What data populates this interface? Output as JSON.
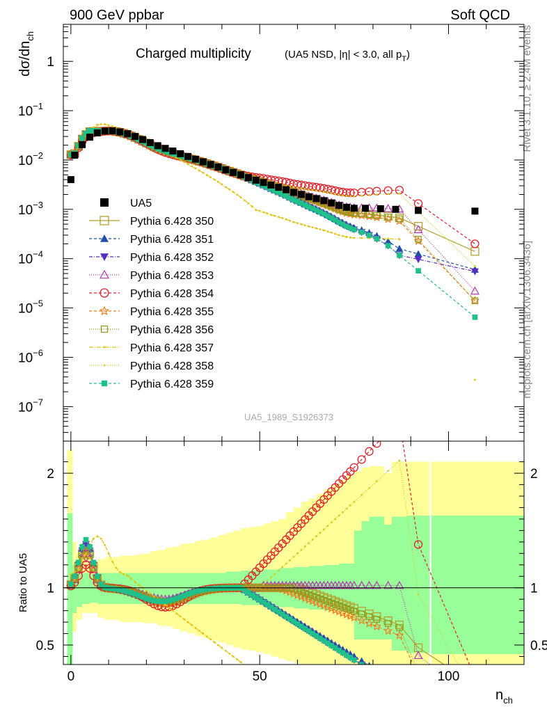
{
  "header": {
    "left": "900 GeV ppbar",
    "right": "Soft QCD",
    "side_top": "Rivet 3.1.10, ≥ 2.4M events",
    "side_bottom": "mcplots.cern.ch [arXiv:1306.3436]",
    "analysis_id": "UA5_1989_S1926373"
  },
  "chart_data": {
    "type": "line",
    "title": "Charged multiplicity",
    "subtitle": "(UA5 NSD, |η| < 3.0, all p",
    "subtitle_sub": "T",
    "subtitle_end": ")",
    "xlabel": "n",
    "xlabel_sub": "ch",
    "ylabel": "dσ/dn",
    "ylabel_sub": "ch",
    "ratio_ylabel": "Ratio to UA5",
    "xlim": [
      -2,
      120
    ],
    "ylim_log": [
      -7.7,
      0.75
    ],
    "ratio_ylim": [
      0.33,
      2.28
    ],
    "log_y": true,
    "x_ticks": [
      0,
      50,
      100
    ],
    "x_tick_labels": [
      "0",
      "50",
      "100"
    ],
    "y_ticks": [
      {
        "base": "10",
        "exp": "−7",
        "value": -7
      },
      {
        "base": "10",
        "exp": "−6",
        "value": -6
      },
      {
        "base": "10",
        "exp": "−5",
        "value": -5
      },
      {
        "base": "10",
        "exp": "−4",
        "value": -4
      },
      {
        "base": "10",
        "exp": "−3",
        "value": -3
      },
      {
        "base": "10",
        "exp": "−2",
        "value": -2
      },
      {
        "base": "10",
        "exp": "−1",
        "value": -1
      },
      {
        "base": "1",
        "exp": "",
        "value": 0
      }
    ],
    "ratio_ticks": [
      {
        "value": 0.5,
        "label": "0.5"
      },
      {
        "value": 1,
        "label": "1"
      },
      {
        "value": 2,
        "label": "2"
      }
    ],
    "legend_position": "left-middle",
    "data_series": {
      "name": "UA5",
      "color": "#000000",
      "x": [
        0,
        1,
        3,
        5,
        7,
        9,
        11,
        13,
        15,
        17,
        19,
        21,
        23,
        25,
        27,
        29,
        31,
        33,
        35,
        37,
        39,
        41,
        43,
        45,
        47,
        49,
        51,
        53,
        55,
        57,
        59,
        61,
        63,
        65,
        67,
        69,
        71,
        73,
        75,
        78,
        82,
        86,
        92,
        107
      ],
      "y": [
        0.004,
        0.0125,
        0.0205,
        0.029,
        0.0355,
        0.0385,
        0.039,
        0.037,
        0.034,
        0.03,
        0.026,
        0.0225,
        0.0195,
        0.0172,
        0.0152,
        0.0134,
        0.0118,
        0.0104,
        0.0092,
        0.0081,
        0.0072,
        0.0063,
        0.0056,
        0.005,
        0.0044,
        0.0039,
        0.0035,
        0.0031,
        0.0028,
        0.0025,
        0.0022,
        0.002,
        0.0018,
        0.00165,
        0.0015,
        0.00135,
        0.0012,
        0.0011,
        0.00105,
        0.00105,
        0.00103,
        0.001,
        0.00095,
        0.00092
      ]
    },
    "band_outer": [
      {
        "x": [
          -1,
          0.5
        ],
        "lo": 0.33,
        "hi": 2.2
      },
      {
        "x": [
          0.5,
          1.5
        ],
        "lo": 0.62,
        "hi": 1.4
      },
      {
        "x": [
          1.5,
          3
        ],
        "lo": 0.72,
        "hi": 1.3
      },
      {
        "x": [
          3,
          5
        ],
        "lo": 0.78,
        "hi": 1.25
      },
      {
        "x": [
          5,
          7
        ],
        "lo": 0.78,
        "hi": 1.22
      },
      {
        "x": [
          7,
          9
        ],
        "lo": 0.74,
        "hi": 1.25
      },
      {
        "x": [
          9,
          11
        ],
        "lo": 0.72,
        "hi": 1.27
      },
      {
        "x": [
          11,
          13
        ],
        "lo": 0.72,
        "hi": 1.27
      },
      {
        "x": [
          13,
          15
        ],
        "lo": 0.7,
        "hi": 1.28
      },
      {
        "x": [
          15,
          17
        ],
        "lo": 0.7,
        "hi": 1.28
      },
      {
        "x": [
          17,
          19
        ],
        "lo": 0.7,
        "hi": 1.29
      },
      {
        "x": [
          19,
          21
        ],
        "lo": 0.69,
        "hi": 1.3
      },
      {
        "x": [
          21,
          23
        ],
        "lo": 0.69,
        "hi": 1.32
      },
      {
        "x": [
          23,
          25
        ],
        "lo": 0.67,
        "hi": 1.33
      },
      {
        "x": [
          25,
          27
        ],
        "lo": 0.66,
        "hi": 1.35
      },
      {
        "x": [
          27,
          29
        ],
        "lo": 0.64,
        "hi": 1.36
      },
      {
        "x": [
          29,
          31
        ],
        "lo": 0.62,
        "hi": 1.38
      },
      {
        "x": [
          31,
          33
        ],
        "lo": 0.6,
        "hi": 1.39
      },
      {
        "x": [
          33,
          35
        ],
        "lo": 0.58,
        "hi": 1.41
      },
      {
        "x": [
          35,
          37
        ],
        "lo": 0.56,
        "hi": 1.42
      },
      {
        "x": [
          37,
          39
        ],
        "lo": 0.54,
        "hi": 1.44
      },
      {
        "x": [
          39,
          41
        ],
        "lo": 0.52,
        "hi": 1.46
      },
      {
        "x": [
          41,
          43
        ],
        "lo": 0.5,
        "hi": 1.48
      },
      {
        "x": [
          43,
          45
        ],
        "lo": 0.48,
        "hi": 1.5
      },
      {
        "x": [
          45,
          47
        ],
        "lo": 0.46,
        "hi": 1.52
      },
      {
        "x": [
          47,
          49
        ],
        "lo": 0.45,
        "hi": 1.53
      },
      {
        "x": [
          49,
          51
        ],
        "lo": 0.44,
        "hi": 1.54
      },
      {
        "x": [
          51,
          53
        ],
        "lo": 0.42,
        "hi": 1.56
      },
      {
        "x": [
          53,
          55
        ],
        "lo": 0.4,
        "hi": 1.58
      },
      {
        "x": [
          55,
          57
        ],
        "lo": 0.38,
        "hi": 1.6
      },
      {
        "x": [
          57,
          59
        ],
        "lo": 0.36,
        "hi": 1.66
      },
      {
        "x": [
          59,
          61
        ],
        "lo": 0.34,
        "hi": 1.7
      },
      {
        "x": [
          61,
          63
        ],
        "lo": 0.33,
        "hi": 1.75
      },
      {
        "x": [
          63,
          65
        ],
        "lo": 0.33,
        "hi": 1.78
      },
      {
        "x": [
          65,
          67
        ],
        "lo": 0.33,
        "hi": 1.82
      },
      {
        "x": [
          67,
          69
        ],
        "lo": 0.33,
        "hi": 1.86
      },
      {
        "x": [
          69,
          71
        ],
        "lo": 0.33,
        "hi": 1.9
      },
      {
        "x": [
          71,
          73
        ],
        "lo": 0.33,
        "hi": 1.94
      },
      {
        "x": [
          73,
          75
        ],
        "lo": 0.33,
        "hi": 1.98
      },
      {
        "x": [
          75,
          77
        ],
        "lo": 0.33,
        "hi": 2.02
      },
      {
        "x": [
          77,
          79
        ],
        "lo": 0.33,
        "hi": 2.05
      },
      {
        "x": [
          79,
          81
        ],
        "lo": 0.33,
        "hi": 2.06
      },
      {
        "x": [
          81,
          83
        ],
        "lo": 0.33,
        "hi": 2.06
      },
      {
        "x": [
          83,
          85
        ],
        "lo": 0.33,
        "hi": 2.0
      },
      {
        "x": [
          85,
          89
        ],
        "lo": 0.33,
        "hi": 2.1
      },
      {
        "x": [
          89,
          95
        ],
        "lo": 0.33,
        "hi": 2.1
      },
      {
        "x": [
          95.5,
          120
        ],
        "lo": 0.33,
        "hi": 2.1
      }
    ],
    "band_inner": [
      {
        "x": [
          -1,
          0.5
        ],
        "lo": 0.33,
        "hi": 1.65
      },
      {
        "x": [
          0.5,
          1.5
        ],
        "lo": 0.78,
        "hi": 1.2
      },
      {
        "x": [
          1.5,
          3
        ],
        "lo": 0.83,
        "hi": 1.15
      },
      {
        "x": [
          3,
          5
        ],
        "lo": 0.86,
        "hi": 1.13
      },
      {
        "x": [
          5,
          7
        ],
        "lo": 0.87,
        "hi": 1.12
      },
      {
        "x": [
          7,
          9
        ],
        "lo": 0.86,
        "hi": 1.13
      },
      {
        "x": [
          9,
          11
        ],
        "lo": 0.86,
        "hi": 1.13
      },
      {
        "x": [
          11,
          13
        ],
        "lo": 0.86,
        "hi": 1.13
      },
      {
        "x": [
          13,
          15
        ],
        "lo": 0.86,
        "hi": 1.13
      },
      {
        "x": [
          15,
          17
        ],
        "lo": 0.86,
        "hi": 1.13
      },
      {
        "x": [
          17,
          19
        ],
        "lo": 0.86,
        "hi": 1.13
      },
      {
        "x": [
          19,
          21
        ],
        "lo": 0.86,
        "hi": 1.13
      },
      {
        "x": [
          21,
          23
        ],
        "lo": 0.86,
        "hi": 1.13
      },
      {
        "x": [
          23,
          25
        ],
        "lo": 0.86,
        "hi": 1.13
      },
      {
        "x": [
          25,
          27
        ],
        "lo": 0.86,
        "hi": 1.13
      },
      {
        "x": [
          27,
          29
        ],
        "lo": 0.86,
        "hi": 1.13
      },
      {
        "x": [
          29,
          31
        ],
        "lo": 0.86,
        "hi": 1.13
      },
      {
        "x": [
          31,
          33
        ],
        "lo": 0.86,
        "hi": 1.13
      },
      {
        "x": [
          33,
          35
        ],
        "lo": 0.86,
        "hi": 1.13
      },
      {
        "x": [
          35,
          37
        ],
        "lo": 0.86,
        "hi": 1.13
      },
      {
        "x": [
          37,
          39
        ],
        "lo": 0.86,
        "hi": 1.13
      },
      {
        "x": [
          39,
          41
        ],
        "lo": 0.86,
        "hi": 1.13
      },
      {
        "x": [
          41,
          43
        ],
        "lo": 0.86,
        "hi": 1.14
      },
      {
        "x": [
          43,
          45
        ],
        "lo": 0.86,
        "hi": 1.14
      },
      {
        "x": [
          45,
          47
        ],
        "lo": 0.85,
        "hi": 1.15
      },
      {
        "x": [
          47,
          49
        ],
        "lo": 0.85,
        "hi": 1.15
      },
      {
        "x": [
          49,
          51
        ],
        "lo": 0.85,
        "hi": 1.15
      },
      {
        "x": [
          51,
          53
        ],
        "lo": 0.84,
        "hi": 1.16
      },
      {
        "x": [
          53,
          55
        ],
        "lo": 0.84,
        "hi": 1.16
      },
      {
        "x": [
          55,
          57
        ],
        "lo": 0.83,
        "hi": 1.17
      },
      {
        "x": [
          57,
          59
        ],
        "lo": 0.83,
        "hi": 1.17
      },
      {
        "x": [
          59,
          61
        ],
        "lo": 0.82,
        "hi": 1.18
      },
      {
        "x": [
          61,
          63
        ],
        "lo": 0.82,
        "hi": 1.18
      },
      {
        "x": [
          63,
          65
        ],
        "lo": 0.81,
        "hi": 1.19
      },
      {
        "x": [
          65,
          67
        ],
        "lo": 0.81,
        "hi": 1.19
      },
      {
        "x": [
          67,
          69
        ],
        "lo": 0.8,
        "hi": 1.2
      },
      {
        "x": [
          69,
          71
        ],
        "lo": 0.8,
        "hi": 1.2
      },
      {
        "x": [
          71,
          73
        ],
        "lo": 0.79,
        "hi": 1.21
      },
      {
        "x": [
          73,
          75
        ],
        "lo": 0.79,
        "hi": 1.21
      },
      {
        "x": [
          75,
          77
        ],
        "lo": 0.55,
        "hi": 1.5
      },
      {
        "x": [
          77,
          79
        ],
        "lo": 0.55,
        "hi": 1.58
      },
      {
        "x": [
          79,
          81
        ],
        "lo": 0.55,
        "hi": 1.62
      },
      {
        "x": [
          81,
          83
        ],
        "lo": 0.55,
        "hi": 1.62
      },
      {
        "x": [
          83,
          85
        ],
        "lo": 0.55,
        "hi": 1.55
      },
      {
        "x": [
          85,
          89
        ],
        "lo": 0.45,
        "hi": 1.62
      },
      {
        "x": [
          89,
          95
        ],
        "lo": 0.43,
        "hi": 1.63
      },
      {
        "x": [
          95.5,
          120
        ],
        "lo": 0.42,
        "hi": 1.63
      }
    ],
    "series": [
      {
        "name": "Pythia 6.428 350",
        "color": "#b5a02e",
        "marker": "square-open",
        "dash": "",
        "mc_scale": 1.0,
        "tail_exp": 1.0,
        "tail_end": 0.00014
      },
      {
        "name": "Pythia 6.428 351",
        "color": "#1f4fa8",
        "marker": "triangle-up",
        "dash": "4,3",
        "mc_scale": 1.0,
        "tail_exp": 1.0,
        "tail_end": 6e-05
      },
      {
        "name": "Pythia 6.428 352",
        "color": "#5a2bc2",
        "marker": "triangle-down",
        "dash": "5,2,1,2",
        "mc_scale": 1.0,
        "tail_exp": 1.0,
        "tail_end": 5.5e-05
      },
      {
        "name": "Pythia 6.428 353",
        "color": "#b03ab0",
        "marker": "triangle-open",
        "dash": "1,2",
        "mc_scale": 1.0,
        "tail_exp": 1.0,
        "tail_end": 2.2e-05
      },
      {
        "name": "Pythia 6.428 354",
        "color": "#e0202a",
        "marker": "circle-open",
        "dash": "4,3",
        "mc_scale": 1.0,
        "tail_exp": 1.0,
        "tail_end": 0.0002
      },
      {
        "name": "Pythia 6.428 355",
        "color": "#f07a1a",
        "marker": "star-open",
        "dash": "4,3",
        "mc_scale": 1.0,
        "tail_exp": 1.0,
        "tail_end": 1.4e-05
      },
      {
        "name": "Pythia 6.428 356",
        "color": "#8a9a1a",
        "marker": "square-open-small",
        "dash": "1,2",
        "mc_scale": 1.0,
        "tail_exp": 1.0,
        "tail_end": 1.4e-05
      },
      {
        "name": "Pythia 6.428 357",
        "color": "#e3c20a",
        "marker": "dot",
        "dash": "6,2,1,2",
        "mc_scale": 1.0,
        "tail_exp": 1.0,
        "tail_end": 3.5e-07
      },
      {
        "name": "Pythia 6.428 358",
        "color": "#c8d020",
        "marker": "dot",
        "dash": "1,2",
        "mc_scale": 1.0,
        "tail_exp": 1.0,
        "tail_end": 7e-05
      },
      {
        "name": "Pythia 6.428 359",
        "color": "#1fc08a",
        "marker": "square",
        "dash": "4,3",
        "mc_scale": 1.0,
        "tail_exp": 1.0,
        "tail_end": 6.5e-06
      }
    ]
  }
}
